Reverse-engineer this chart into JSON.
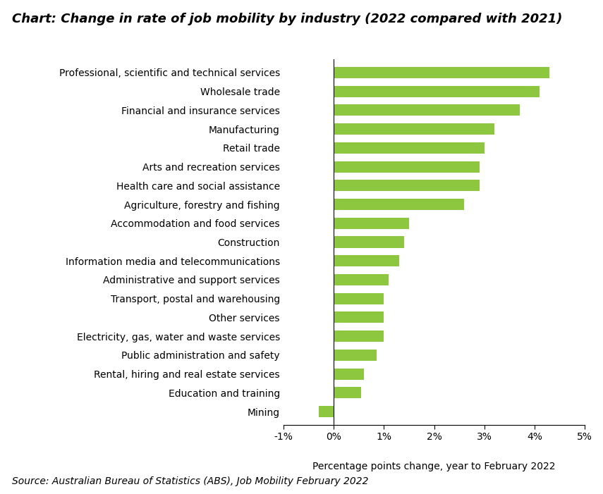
{
  "title": "Chart: Change in rate of job mobility by industry (2022 compared with 2021)",
  "categories": [
    "Professional, scientific and technical services",
    "Wholesale trade",
    "Financial and insurance services",
    "Manufacturing",
    "Retail trade",
    "Arts and recreation services",
    "Health care and social assistance",
    "Agriculture, forestry and fishing",
    "Accommodation and food services",
    "Construction",
    "Information media and telecommunications",
    "Administrative and support services",
    "Transport, postal and warehousing",
    "Other services",
    "Electricity, gas, water and waste services",
    "Public administration and safety",
    "Rental, hiring and real estate services",
    "Education and training",
    "Mining"
  ],
  "values": [
    4.3,
    4.1,
    3.7,
    3.2,
    3.0,
    2.9,
    2.9,
    2.6,
    1.5,
    1.4,
    1.3,
    1.1,
    1.0,
    1.0,
    1.0,
    0.85,
    0.6,
    0.55,
    -0.3
  ],
  "bar_color": "#8dc63f",
  "xlabel": "Percentage points change, year to February 2022",
  "source_text": "Source: Australian Bureau of Statistics (ABS), Job Mobility February 2022",
  "xlim": [
    -1,
    5
  ],
  "xticks": [
    -1,
    0,
    1,
    2,
    3,
    4,
    5
  ],
  "xtick_labels": [
    "-1%",
    "0%",
    "1%",
    "2%",
    "3%",
    "4%",
    "5%"
  ],
  "background_color": "#ffffff",
  "title_fontsize": 13,
  "label_fontsize": 10,
  "tick_fontsize": 10,
  "source_fontsize": 10,
  "bar_height": 0.6
}
